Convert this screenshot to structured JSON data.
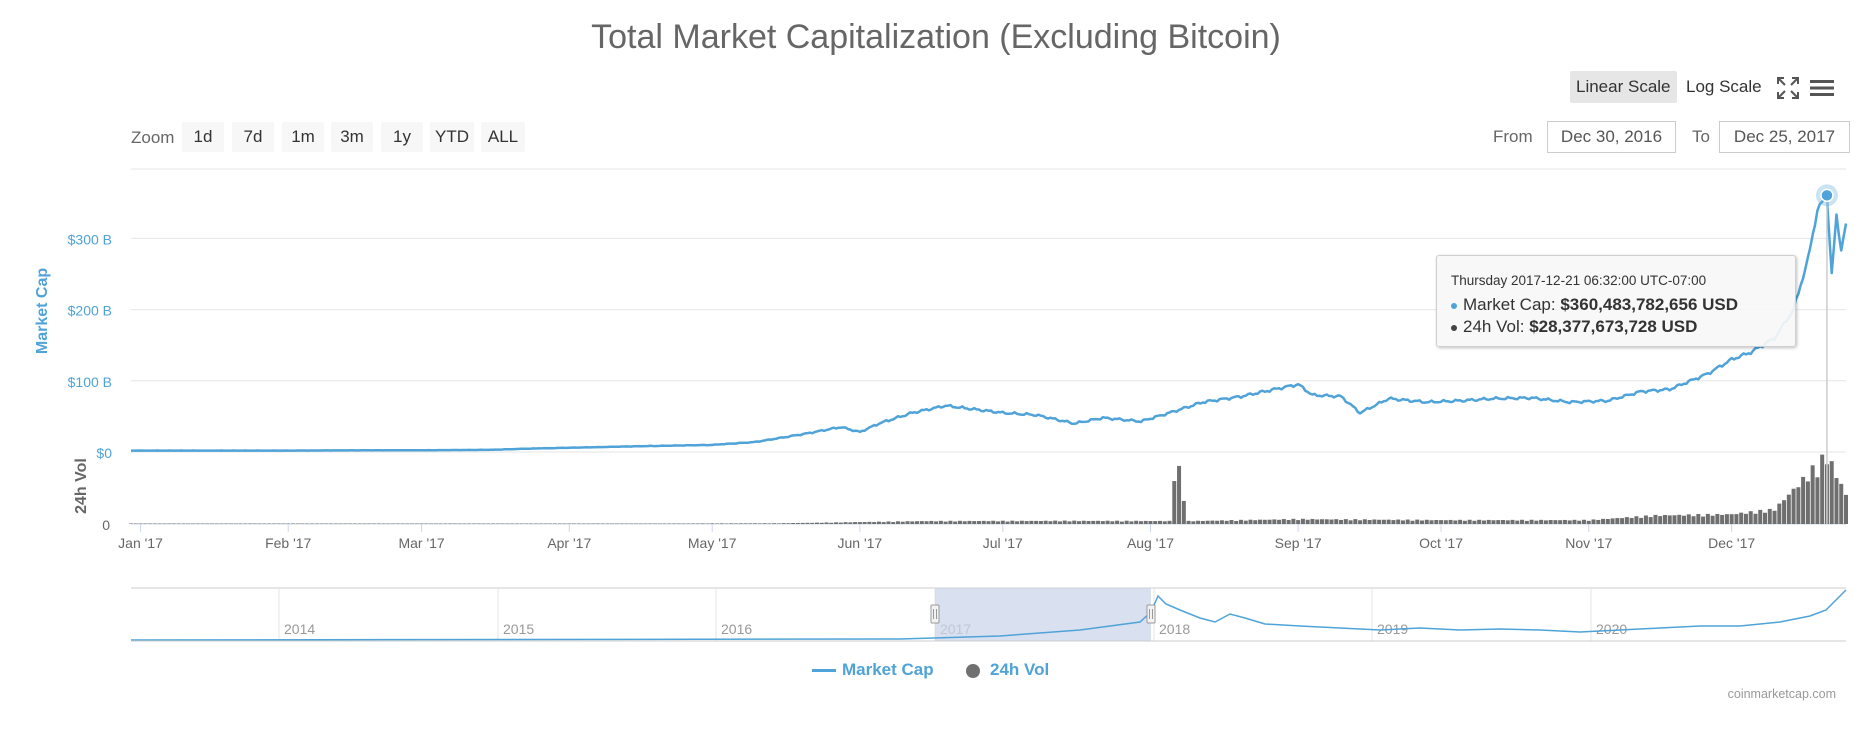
{
  "chart_data": {
    "type": "line",
    "title": "Total Market Capitalization (Excluding Bitcoin)",
    "yaxis_market_cap": {
      "label": "Market Cap",
      "ticks": [
        "$0",
        "$100 B",
        "$200 B",
        "$300 B"
      ],
      "range": [
        0,
        400
      ],
      "unit": "billion USD"
    },
    "yaxis_volume": {
      "label": "24h Vol",
      "ticks": [
        "0"
      ]
    },
    "x_ticks": [
      "Jan '17",
      "Feb '17",
      "Mar '17",
      "Apr '17",
      "May '17",
      "Jun '17",
      "Jul '17",
      "Aug '17",
      "Sep '17",
      "Oct '17",
      "Nov '17",
      "Dec '17"
    ],
    "x_range": [
      "2016-12-30",
      "2017-12-25"
    ],
    "series": [
      {
        "name": "Market Cap",
        "color": "#4fa3d8",
        "unit": "billion USD",
        "points": [
          [
            "2016-12-30",
            2
          ],
          [
            "2017-01-15",
            2
          ],
          [
            "2017-02-01",
            2
          ],
          [
            "2017-02-15",
            2.3
          ],
          [
            "2017-03-01",
            2.5
          ],
          [
            "2017-03-15",
            3
          ],
          [
            "2017-03-25",
            5
          ],
          [
            "2017-04-01",
            6
          ],
          [
            "2017-04-15",
            8
          ],
          [
            "2017-05-01",
            10
          ],
          [
            "2017-05-10",
            14
          ],
          [
            "2017-05-20",
            25
          ],
          [
            "2017-05-28",
            35
          ],
          [
            "2017-06-01",
            28
          ],
          [
            "2017-06-05",
            40
          ],
          [
            "2017-06-12",
            55
          ],
          [
            "2017-06-19",
            65
          ],
          [
            "2017-06-25",
            60
          ],
          [
            "2017-07-01",
            55
          ],
          [
            "2017-07-08",
            52
          ],
          [
            "2017-07-16",
            40
          ],
          [
            "2017-07-22",
            48
          ],
          [
            "2017-07-30",
            43
          ],
          [
            "2017-08-05",
            55
          ],
          [
            "2017-08-12",
            70
          ],
          [
            "2017-08-20",
            78
          ],
          [
            "2017-08-27",
            88
          ],
          [
            "2017-09-01",
            95
          ],
          [
            "2017-09-04",
            80
          ],
          [
            "2017-09-10",
            78
          ],
          [
            "2017-09-14",
            55
          ],
          [
            "2017-09-20",
            75
          ],
          [
            "2017-09-28",
            70
          ],
          [
            "2017-10-05",
            72
          ],
          [
            "2017-10-12",
            75
          ],
          [
            "2017-10-20",
            76
          ],
          [
            "2017-10-28",
            70
          ],
          [
            "2017-11-05",
            72
          ],
          [
            "2017-11-12",
            85
          ],
          [
            "2017-11-18",
            88
          ],
          [
            "2017-11-26",
            110
          ],
          [
            "2017-12-01",
            130
          ],
          [
            "2017-12-05",
            140
          ],
          [
            "2017-12-10",
            160
          ],
          [
            "2017-12-14",
            200
          ],
          [
            "2017-12-17",
            270
          ],
          [
            "2017-12-19",
            340
          ],
          [
            "2017-12-21",
            360.48
          ],
          [
            "2017-12-22",
            250
          ],
          [
            "2017-12-23",
            330
          ],
          [
            "2017-12-24",
            285
          ],
          [
            "2017-12-25",
            320
          ]
        ]
      },
      {
        "name": "24h Vol",
        "color": "#434348",
        "unit": "billion USD",
        "points": [
          [
            "2016-12-30",
            0.05
          ],
          [
            "2017-04-01",
            0.1
          ],
          [
            "2017-05-15",
            0.3
          ],
          [
            "2017-06-15",
            1.2
          ],
          [
            "2017-07-15",
            1.3
          ],
          [
            "2017-08-07",
            22
          ],
          [
            "2017-08-09",
            1.2
          ],
          [
            "2017-09-01",
            2
          ],
          [
            "2017-10-01",
            1.6
          ],
          [
            "2017-11-01",
            1.6
          ],
          [
            "2017-11-15",
            3.5
          ],
          [
            "2017-12-01",
            4
          ],
          [
            "2017-12-10",
            6
          ],
          [
            "2017-12-21",
            28.38
          ],
          [
            "2017-12-25",
            12
          ]
        ]
      }
    ],
    "tooltip": {
      "header": "Thursday 2017-12-21 06:32:00 UTC-07:00",
      "market_cap_label": "Market Cap:",
      "market_cap_value": "$360,483,782,656 USD",
      "volume_label": "24h Vol:",
      "volume_value": "$28,377,673,728 USD"
    },
    "navigator": {
      "years": [
        "2014",
        "2015",
        "2016",
        "2017",
        "2018",
        "2019",
        "2020"
      ],
      "selection": [
        "2016-12-30",
        "2017-12-25"
      ]
    },
    "legend": [
      "Market Cap",
      "24h Vol"
    ],
    "legend_placement": "bottom-center",
    "grid": true
  },
  "controls": {
    "scale_buttons": [
      "Linear Scale",
      "Log Scale"
    ],
    "active_scale": "Linear Scale",
    "zoom_label": "Zoom",
    "zoom_buttons": [
      "1d",
      "7d",
      "1m",
      "3m",
      "1y",
      "YTD",
      "ALL"
    ],
    "from_label": "From",
    "from_value": "Dec 30, 2016",
    "to_label": "To",
    "to_value": "Dec 25, 2017"
  },
  "credits": "coinmarketcap.com",
  "colors": {
    "market_cap": "#4fa3d8",
    "volume": "#434348",
    "navigator_mask": "#ccd6eb"
  }
}
